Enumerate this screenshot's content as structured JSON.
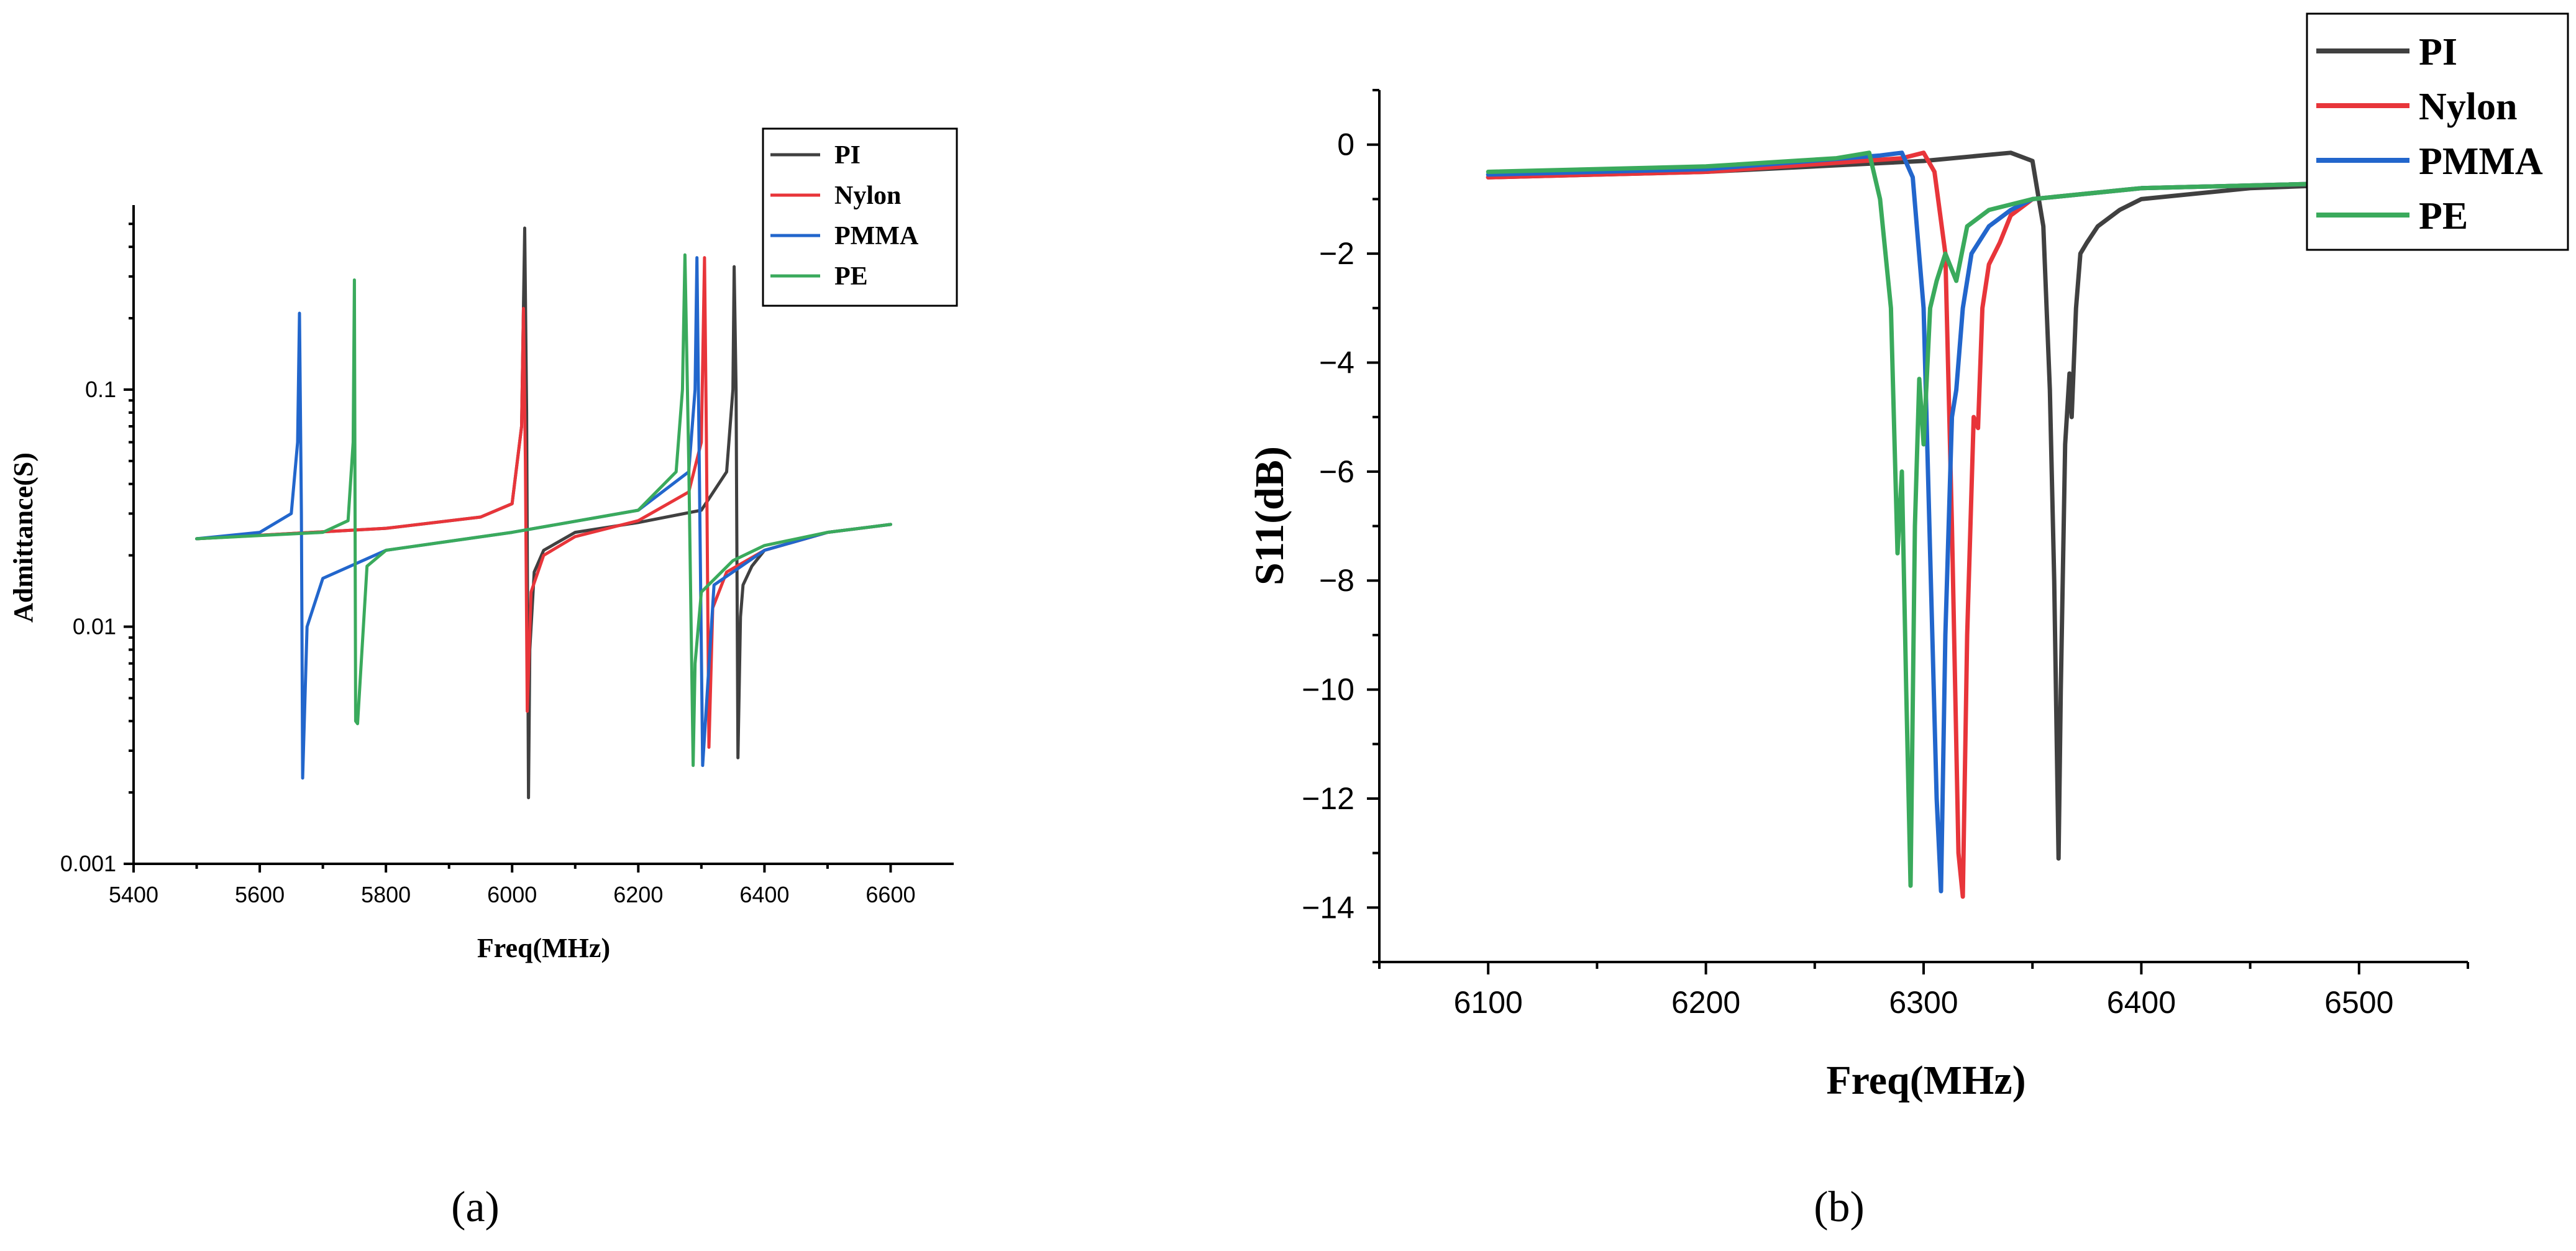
{
  "chart_data": [
    {
      "panel": "a",
      "type": "line",
      "panel_label": "(a)",
      "xlabel": "Freq(MHz)",
      "ylabel": "Admittance(S)",
      "xlim": [
        5400,
        6700
      ],
      "ylim": [
        0.001,
        0.6
      ],
      "yscale": "log",
      "xticks": [
        5400,
        5600,
        5800,
        6000,
        6200,
        6400,
        6600
      ],
      "yticks": [
        {
          "value": 0.001,
          "label": "0.001"
        },
        {
          "value": 0.01,
          "label": "0.01"
        },
        {
          "value": 0.1,
          "label": "0.1"
        }
      ],
      "legend_position": "top-right",
      "series": [
        {
          "name": "PI",
          "color": "#404040",
          "x": [
            5500,
            5800,
            5950,
            6000,
            6015,
            6020,
            6023,
            6026,
            6028,
            6035,
            6050,
            6100,
            6200,
            6300,
            6340,
            6350,
            6352,
            6355,
            6358,
            6362,
            6366,
            6380,
            6400,
            6500,
            6600
          ],
          "y": [
            0.0235,
            0.026,
            0.029,
            0.033,
            0.07,
            0.48,
            0.08,
            0.0019,
            0.008,
            0.017,
            0.021,
            0.025,
            0.0275,
            0.031,
            0.045,
            0.1,
            0.33,
            0.1,
            0.0028,
            0.011,
            0.015,
            0.018,
            0.021,
            0.025,
            0.027
          ]
        },
        {
          "name": "Nylon",
          "color": "#e8353a",
          "x": [
            5500,
            5800,
            5950,
            6000,
            6015,
            6018,
            6021,
            6024,
            6030,
            6050,
            6100,
            6200,
            6280,
            6300,
            6305,
            6308,
            6312,
            6318,
            6340,
            6400,
            6500,
            6600
          ],
          "y": [
            0.0235,
            0.026,
            0.029,
            0.033,
            0.07,
            0.22,
            0.05,
            0.0044,
            0.014,
            0.02,
            0.024,
            0.028,
            0.037,
            0.06,
            0.36,
            0.06,
            0.0031,
            0.012,
            0.017,
            0.021,
            0.025,
            0.027
          ]
        },
        {
          "name": "PMMA",
          "color": "#2266cc",
          "x": [
            5500,
            5600,
            5650,
            5660,
            5663,
            5666,
            5668,
            5675,
            5700,
            5800,
            6000,
            6200,
            6280,
            6290,
            6293,
            6297,
            6302,
            6320,
            6400,
            6500,
            6600
          ],
          "y": [
            0.0235,
            0.025,
            0.03,
            0.06,
            0.21,
            0.03,
            0.0023,
            0.01,
            0.016,
            0.021,
            0.025,
            0.031,
            0.045,
            0.1,
            0.36,
            0.04,
            0.0026,
            0.015,
            0.021,
            0.025,
            0.027
          ]
        },
        {
          "name": "PE",
          "color": "#3aaa5c",
          "x": [
            5500,
            5700,
            5740,
            5748,
            5750,
            5752,
            5755,
            5770,
            5800,
            6000,
            6200,
            6260,
            6270,
            6274,
            6280,
            6287,
            6290,
            6300,
            6350,
            6400,
            6500,
            6600
          ],
          "y": [
            0.0235,
            0.025,
            0.028,
            0.06,
            0.29,
            0.004,
            0.0039,
            0.018,
            0.021,
            0.025,
            0.031,
            0.045,
            0.1,
            0.37,
            0.05,
            0.0026,
            0.007,
            0.014,
            0.019,
            0.022,
            0.025,
            0.027
          ]
        }
      ]
    },
    {
      "panel": "b",
      "type": "line",
      "panel_label": "(b)",
      "xlabel": "Freq(MHz)",
      "ylabel": "S11(dB)",
      "xlim": [
        6050,
        6550
      ],
      "ylim": [
        -15,
        1
      ],
      "xticks": [
        6100,
        6200,
        6300,
        6400,
        6500
      ],
      "yticks": [
        {
          "value": 0,
          "label": "0"
        },
        {
          "value": -2,
          "label": "−2"
        },
        {
          "value": -4,
          "label": "−4"
        },
        {
          "value": -6,
          "label": "−6"
        },
        {
          "value": -8,
          "label": "−8"
        },
        {
          "value": -10,
          "label": "−10"
        },
        {
          "value": -12,
          "label": "−12"
        },
        {
          "value": -14,
          "label": "−14"
        }
      ],
      "legend_position": "top-right",
      "series": [
        {
          "name": "PI",
          "color": "#404040",
          "x": [
            6100,
            6200,
            6300,
            6340,
            6350,
            6355,
            6358,
            6360,
            6362,
            6363,
            6365,
            6367,
            6368,
            6370,
            6372,
            6375,
            6380,
            6390,
            6400,
            6450,
            6550
          ],
          "y": [
            -0.6,
            -0.5,
            -0.3,
            -0.15,
            -0.3,
            -1.5,
            -4.5,
            -8,
            -13.1,
            -10,
            -5.5,
            -4.2,
            -5,
            -3,
            -2,
            -1.8,
            -1.5,
            -1.2,
            -1,
            -0.8,
            -0.65
          ]
        },
        {
          "name": "Nylon",
          "color": "#e8353a",
          "x": [
            6100,
            6200,
            6290,
            6300,
            6305,
            6310,
            6313,
            6316,
            6318,
            6320,
            6323,
            6325,
            6327,
            6330,
            6335,
            6340,
            6350,
            6400,
            6550
          ],
          "y": [
            -0.6,
            -0.5,
            -0.25,
            -0.15,
            -0.5,
            -2,
            -7,
            -13,
            -13.8,
            -9,
            -5,
            -5.2,
            -3,
            -2.2,
            -1.8,
            -1.3,
            -1,
            -0.8,
            -0.65
          ]
        },
        {
          "name": "PMMA",
          "color": "#2266cc",
          "x": [
            6100,
            6200,
            6280,
            6290,
            6295,
            6300,
            6303,
            6306,
            6308,
            6310,
            6313,
            6315,
            6318,
            6322,
            6330,
            6340,
            6350,
            6400,
            6550
          ],
          "y": [
            -0.55,
            -0.45,
            -0.2,
            -0.15,
            -0.6,
            -3,
            -7.5,
            -12,
            -13.7,
            -9,
            -5,
            -4.5,
            -3,
            -2,
            -1.5,
            -1.2,
            -1,
            -0.8,
            -0.65
          ]
        },
        {
          "name": "PE",
          "color": "#3aaa5c",
          "x": [
            6100,
            6200,
            6260,
            6275,
            6280,
            6285,
            6288,
            6290,
            6292,
            6294,
            6296,
            6298,
            6300,
            6303,
            6306,
            6310,
            6315,
            6320,
            6330,
            6350,
            6400,
            6550
          ],
          "y": [
            -0.5,
            -0.4,
            -0.25,
            -0.15,
            -1,
            -3,
            -7.5,
            -6,
            -10,
            -13.6,
            -7,
            -4.3,
            -5.5,
            -3,
            -2.5,
            -2,
            -2.5,
            -1.5,
            -1.2,
            -1,
            -0.8,
            -0.65
          ]
        }
      ]
    }
  ]
}
